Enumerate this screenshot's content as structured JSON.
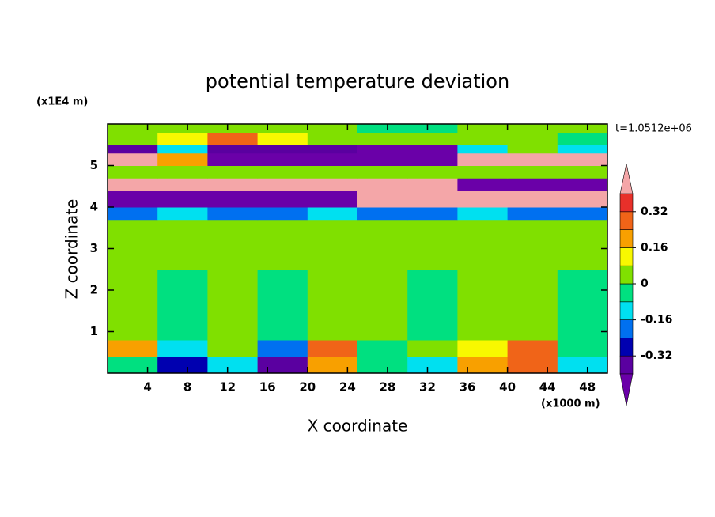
{
  "chart_data": {
    "type": "contour",
    "title": "potential temperature deviation",
    "xlabel": "X coordinate",
    "ylabel": "Z coordinate",
    "x_unit": "(x1000 m)",
    "y_unit": "(x1E4 m)",
    "time_label": "t=1.0512e+06",
    "xlim": [
      0,
      50
    ],
    "ylim": [
      0,
      6
    ],
    "xticks": [
      4,
      8,
      12,
      16,
      20,
      24,
      28,
      32,
      36,
      40,
      44,
      48
    ],
    "yticks": [
      1,
      2,
      3,
      4,
      5
    ],
    "x_edges": [
      0,
      5,
      10,
      15,
      20,
      25,
      30,
      35,
      40,
      45,
      50
    ],
    "z_edges": [
      0,
      0.4,
      0.8,
      2.5,
      3.7,
      4.0,
      4.4,
      4.7,
      5.0,
      5.3,
      5.5,
      5.8,
      6
    ],
    "values": [
      [
        -0.04,
        -0.28,
        -0.12,
        -0.36,
        0.2,
        -0.04,
        -0.12,
        0.2,
        0.28,
        -0.12
      ],
      [
        0.2,
        -0.12,
        0.04,
        -0.2,
        0.28,
        -0.04,
        0.04,
        0.12,
        0.28,
        -0.04
      ],
      [
        0.04,
        -0.04,
        0.04,
        -0.04,
        0.04,
        0.04,
        -0.04,
        0.04,
        0.04,
        -0.04
      ],
      [
        0.04,
        0.04,
        0.04,
        0.04,
        0.04,
        0.04,
        0.04,
        0.04,
        0.04,
        0.04
      ],
      [
        -0.2,
        -0.12,
        -0.2,
        -0.2,
        -0.12,
        -0.2,
        -0.2,
        -0.12,
        -0.2,
        -0.2
      ],
      [
        -0.45,
        -0.45,
        -0.45,
        -0.45,
        -0.45,
        0.45,
        0.45,
        0.45,
        0.45,
        0.45
      ],
      [
        0.45,
        0.45,
        0.45,
        0.45,
        0.45,
        0.45,
        0.45,
        -0.45,
        -0.45,
        -0.45
      ],
      [
        0.04,
        0.04,
        0.04,
        0.04,
        0.04,
        0.04,
        0.04,
        0.04,
        0.04,
        0.04
      ],
      [
        0.45,
        0.2,
        -0.45,
        -0.45,
        -0.45,
        -0.45,
        -0.45,
        0.45,
        0.45,
        0.45
      ],
      [
        -0.36,
        -0.12,
        -0.36,
        -0.36,
        -0.36,
        -0.45,
        -0.45,
        -0.12,
        0.04,
        -0.12
      ],
      [
        0.04,
        0.12,
        0.28,
        0.12,
        0.04,
        0.04,
        0.04,
        0.04,
        0.04,
        -0.04
      ],
      [
        0.04,
        0.04,
        0.04,
        0.04,
        0.04,
        -0.04,
        -0.04,
        0.04,
        0.04,
        0.04
      ]
    ],
    "levels": [
      -0.4,
      -0.32,
      -0.24,
      -0.16,
      -0.08,
      0,
      0.08,
      0.16,
      0.24,
      0.32,
      0.4
    ],
    "colors": [
      "#6a00a8",
      "#5a00a0",
      "#0000b0",
      "#0070f0",
      "#00e0f0",
      "#00e080",
      "#80e000",
      "#f8f800",
      "#f8a000",
      "#f06418",
      "#e8302a",
      "#f4a6a8"
    ],
    "colorbar_ticks": [
      -0.32,
      -0.16,
      0,
      0.16,
      0.32
    ]
  }
}
